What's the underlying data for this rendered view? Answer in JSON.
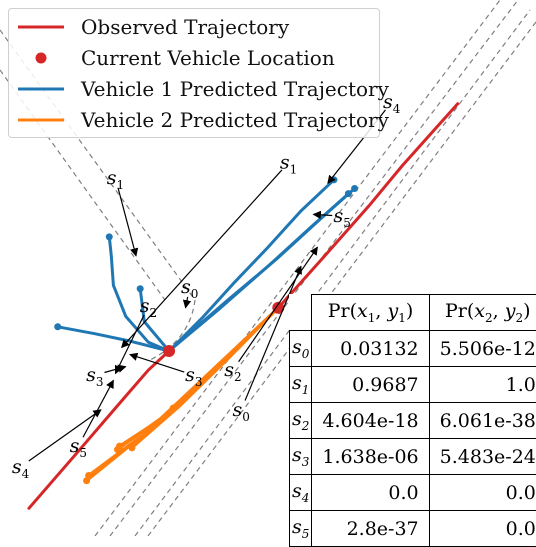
{
  "colors": {
    "observed": "#d62728",
    "vehicle1": "#1f77b4",
    "vehicle2": "#ff7f0e",
    "lane": "#7f7f7f"
  },
  "legend": {
    "items": [
      {
        "key": "observed",
        "label": "Observed Trajectory",
        "marker": "line"
      },
      {
        "key": "current",
        "label": "Current Vehicle Location",
        "marker": "dot"
      },
      {
        "key": "vehicle1",
        "label": "Vehicle 1 Predicted Trajectory",
        "marker": "line"
      },
      {
        "key": "vehicle2",
        "label": "Vehicle 2 Predicted Trajectory",
        "marker": "line"
      }
    ]
  },
  "chart_data": {
    "type": "scatter",
    "title": "",
    "xlabel": "",
    "ylabel": "",
    "grid": false,
    "legend_placement": "top-left",
    "series": [
      {
        "name": "Observed Trajectory",
        "role": "observed",
        "trajectories": [
          {
            "vehicle": 1,
            "x": [
              12.5,
              14.6,
              16.9,
              18.5,
              21.2
            ],
            "y": [
              8.2,
              11.0,
              14.1,
              16.4,
              20.0
            ]
          },
          {
            "vehicle": 2,
            "x": [
              0.4,
              2.8,
              4.6,
              6.2,
              7.2
            ],
            "y": [
              -3.4,
              -0.1,
              2.4,
              4.6,
              5.7
            ]
          }
        ]
      },
      {
        "name": "Current Vehicle Location",
        "role": "current",
        "points": [
          {
            "vehicle": 1,
            "x": 12.5,
            "y": 8.2
          },
          {
            "vehicle": 2,
            "x": 7.2,
            "y": 5.7
          }
        ]
      },
      {
        "name": "Vehicle 1 Predicted Trajectory",
        "role": "vehicle1",
        "modes": [
          {
            "id": "s0",
            "x": [
              7.2,
              8.8,
              10.4,
              12.0,
              13.6,
              15.2
            ],
            "y": [
              5.7,
              7.6,
              9.7,
              11.7,
              13.8,
              15.6
            ]
          },
          {
            "id": "s1",
            "x": [
              7.2,
              6.2,
              5.1,
              4.5,
              4.4,
              4.3
            ],
            "y": [
              5.7,
              6.2,
              7.7,
              9.5,
              11.2,
              12.3
            ]
          },
          {
            "id": "s2",
            "x": [
              7.2,
              6.0,
              5.8
            ],
            "y": [
              5.7,
              7.4,
              9.3
            ]
          },
          {
            "id": "s3",
            "x": [
              7.2,
              5.2,
              3.6,
              1.8
            ],
            "y": [
              5.7,
              6.3,
              6.7,
              7.1
            ]
          },
          {
            "id": "s4",
            "x": [
              7.2,
              10.0,
              12.4,
              14.6,
              16.2
            ],
            "y": [
              5.7,
              8.6,
              11.0,
              13.4,
              15.1
            ]
          },
          {
            "id": "s5",
            "x": [
              7.2,
              9.7,
              12.0,
              14.2,
              15.9
            ],
            "y": [
              5.7,
              8.2,
              10.6,
              13.0,
              14.8
            ]
          }
        ]
      },
      {
        "name": "Vehicle 2 Predicted Trajectory",
        "role": "vehicle2",
        "modes": [
          {
            "id": "s0",
            "x": [
              12.5,
              11.2,
              9.9,
              8.6,
              7.4
            ],
            "y": [
              8.2,
              6.7,
              5.2,
              3.7,
              2.4
            ]
          },
          {
            "id": "s1",
            "x": [
              12.5,
              10.1,
              7.7,
              5.4
            ],
            "y": [
              8.2,
              5.3,
              2.5,
              0.1
            ]
          },
          {
            "id": "s2",
            "x": [
              12.5,
              9.8,
              7.1,
              4.8
            ],
            "y": [
              8.2,
              5.0,
              2.0,
              0.2
            ]
          },
          {
            "id": "s3",
            "x": [
              12.5,
              9.6,
              6.8,
              4.7
            ],
            "y": [
              8.2,
              4.9,
              1.8,
              0.0
            ]
          },
          {
            "id": "s4",
            "x": [
              12.5,
              9.3,
              6.0,
              3.2
            ],
            "y": [
              8.2,
              4.6,
              0.9,
              -1.8
            ]
          },
          {
            "id": "s5",
            "x": [
              12.5,
              9.4,
              6.1,
              3.3
            ],
            "y": [
              8.2,
              4.7,
              1.0,
              -1.5
            ]
          }
        ]
      }
    ],
    "annotations": [
      {
        "text": "s",
        "sub": "0",
        "x": 8.2,
        "y": 9.4,
        "tx": 8.0,
        "ty": 8.2
      },
      {
        "text": "s",
        "sub": "0",
        "x": 10.7,
        "y": 2.3,
        "tx": 13.6,
        "ty": 10.6
      },
      {
        "text": "s",
        "sub": "1",
        "x": 4.6,
        "y": 15.7,
        "tx": 5.6,
        "ty": 11.2
      },
      {
        "text": "s",
        "sub": "1",
        "x": 13.0,
        "y": 16.6,
        "tx": 4.9,
        "ty": 5.9
      },
      {
        "text": "s",
        "sub": "2",
        "x": 6.2,
        "y": 8.3,
        "tx": 4.6,
        "ty": 4.4
      },
      {
        "text": "s",
        "sub": "2",
        "x": 10.3,
        "y": 4.6,
        "tx": 14.4,
        "ty": 11.7
      },
      {
        "text": "s",
        "sub": "3",
        "x": 3.6,
        "y": 4.3,
        "tx": 5.1,
        "ty": 4.8
      },
      {
        "text": "s",
        "sub": "3",
        "x": 8.4,
        "y": 4.3,
        "tx": 5.3,
        "ty": 5.5
      },
      {
        "text": "s",
        "sub": "4",
        "x": 0.0,
        "y": -1.0,
        "tx": 3.9,
        "ty": 2.3
      },
      {
        "text": "s",
        "sub": "4",
        "x": 18.0,
        "y": 20.1,
        "tx": 14.9,
        "ty": 15.4
      },
      {
        "text": "s",
        "sub": "5",
        "x": 2.8,
        "y": 0.2,
        "tx": 4.5,
        "ty": 4.0
      },
      {
        "text": "s",
        "sub": "5",
        "x": 15.6,
        "y": 13.5,
        "tx": 14.2,
        "ty": 13.6
      }
    ],
    "xlim": [
      -1,
      25
    ],
    "ylim": [
      -5,
      26
    ],
    "table": {
      "columns": [
        "Pr(x1, y1)",
        "Pr(x2, y2)"
      ],
      "rows": [
        {
          "label": "s0",
          "values": [
            "0.03132",
            "5.506e-12"
          ]
        },
        {
          "label": "s1",
          "values": [
            "0.9687",
            "1.0"
          ]
        },
        {
          "label": "s2",
          "values": [
            "4.604e-18",
            "6.061e-38"
          ]
        },
        {
          "label": "s3",
          "values": [
            "1.638e-06",
            "5.483e-24"
          ]
        },
        {
          "label": "s4",
          "values": [
            "0.0",
            "0.0"
          ]
        },
        {
          "label": "s5",
          "values": [
            "2.8e-37",
            "0.0"
          ]
        }
      ]
    }
  },
  "table_view": {
    "col1": {
      "name": "Pr(",
      "a": "x",
      "a_sub": "1",
      "b": "y",
      "b_sub": "1",
      "close": ")"
    },
    "col2": {
      "name": "Pr(",
      "a": "x",
      "a_sub": "2",
      "b": "y",
      "b_sub": "2",
      "close": ")"
    },
    "rows": [
      {
        "s": "s",
        "sub": "0"
      },
      {
        "s": "s",
        "sub": "1"
      },
      {
        "s": "s",
        "sub": "2"
      },
      {
        "s": "s",
        "sub": "3"
      },
      {
        "s": "s",
        "sub": "4"
      },
      {
        "s": "s",
        "sub": "5"
      }
    ]
  }
}
